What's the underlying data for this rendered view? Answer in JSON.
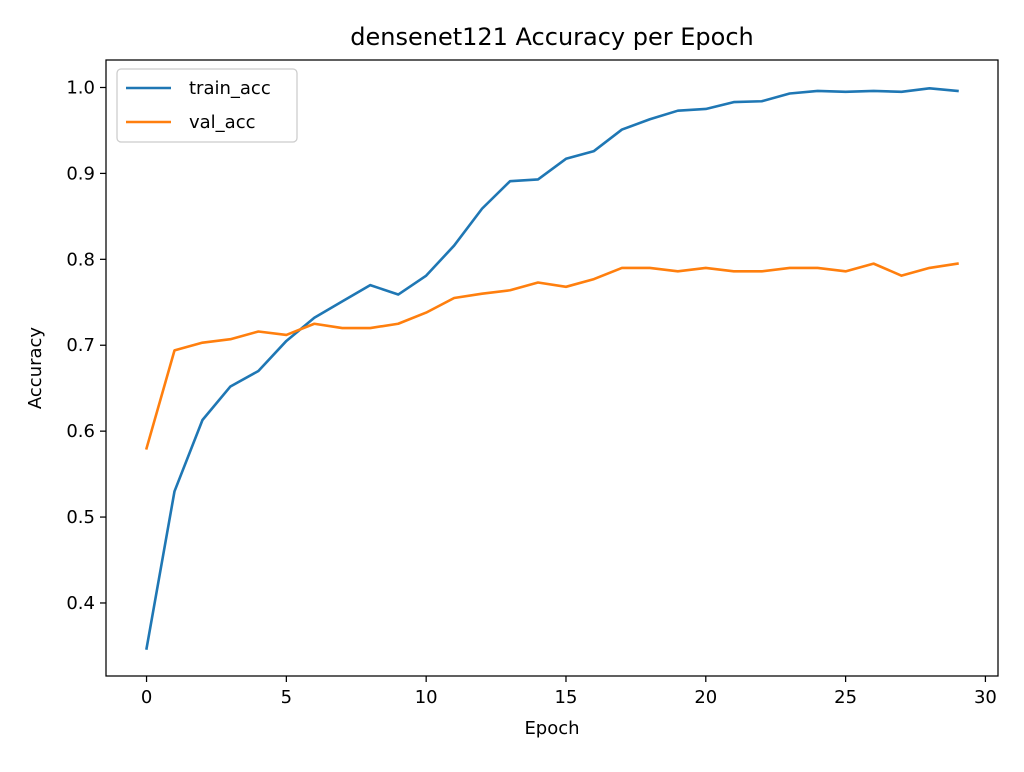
{
  "chart_data": {
    "type": "line",
    "title": "densenet121 Accuracy per Epoch",
    "xlabel": "Epoch",
    "ylabel": "Accuracy",
    "xlim": [
      -1.45,
      30.45
    ],
    "ylim": [
      0.315,
      1.032
    ],
    "x_ticks": [
      0,
      5,
      10,
      15,
      20,
      25,
      30
    ],
    "y_ticks": [
      0.4,
      0.5,
      0.6,
      0.7,
      0.8,
      0.9,
      1.0
    ],
    "x_tick_labels": [
      "0",
      "5",
      "10",
      "15",
      "20",
      "25",
      "30"
    ],
    "y_tick_labels": [
      "0.4",
      "0.5",
      "0.6",
      "0.7",
      "0.8",
      "0.9",
      "1.0"
    ],
    "grid": false,
    "legend_position": "upper-left",
    "x": [
      0,
      1,
      2,
      3,
      4,
      5,
      6,
      7,
      8,
      9,
      10,
      11,
      12,
      13,
      14,
      15,
      16,
      17,
      18,
      19,
      20,
      21,
      22,
      23,
      24,
      25,
      26,
      27,
      28,
      29
    ],
    "series": [
      {
        "name": "train_acc",
        "color": "#1f77b4",
        "values": [
          0.347,
          0.53,
          0.613,
          0.652,
          0.67,
          0.705,
          0.732,
          0.751,
          0.77,
          0.759,
          0.781,
          0.816,
          0.859,
          0.891,
          0.893,
          0.917,
          0.926,
          0.951,
          0.963,
          0.973,
          0.975,
          0.983,
          0.984,
          0.993,
          0.996,
          0.995,
          0.996,
          0.995,
          0.999,
          0.996
        ]
      },
      {
        "name": "val_acc",
        "color": "#ff7f0e",
        "values": [
          0.58,
          0.694,
          0.703,
          0.707,
          0.716,
          0.712,
          0.725,
          0.72,
          0.72,
          0.725,
          0.738,
          0.755,
          0.76,
          0.764,
          0.773,
          0.768,
          0.777,
          0.79,
          0.79,
          0.786,
          0.79,
          0.786,
          0.786,
          0.79,
          0.79,
          0.786,
          0.795,
          0.781,
          0.79,
          0.795
        ]
      }
    ]
  }
}
